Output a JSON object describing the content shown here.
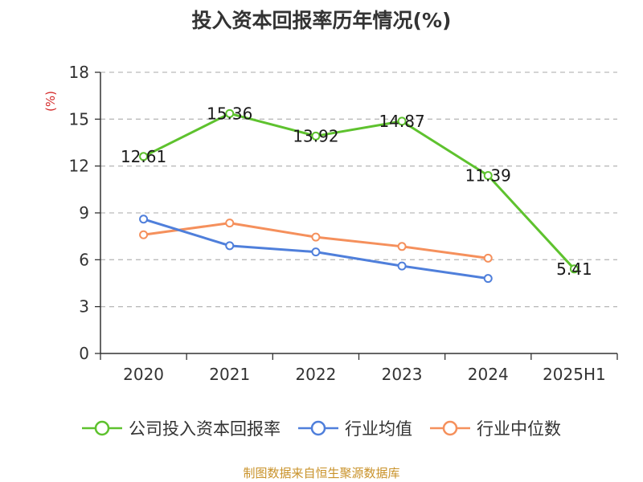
{
  "title": "投入资本回报率历年情况(%)",
  "source_note": "制图数据来自恒生聚源数据库",
  "colors": {
    "company": "#5ec22e",
    "industry_avg": "#4f7fdb",
    "industry_median": "#f5905c",
    "unit": "#d42a2a",
    "source": "#c9922a",
    "axis": "#333333",
    "grid": "#bbbbbb"
  },
  "chart_data": {
    "type": "line",
    "title": "投入资本回报率历年情况(%)",
    "ylabel": "(%)",
    "xlabel": "",
    "categories": [
      "2020",
      "2021",
      "2022",
      "2023",
      "2024",
      "2025H1"
    ],
    "ylim": [
      0,
      18
    ],
    "yticks": [
      0,
      3,
      6,
      9,
      12,
      15,
      18
    ],
    "grid": true,
    "legend_position": "bottom",
    "series": [
      {
        "name": "公司投入资本回报率",
        "color": "#5ec22e",
        "values": [
          12.61,
          15.36,
          13.92,
          14.87,
          11.39,
          5.41
        ],
        "labels": [
          "12.61",
          "15.36",
          "13.92",
          "14.87",
          "11.39",
          "5.41"
        ]
      },
      {
        "name": "行业均值",
        "color": "#4f7fdb",
        "values": [
          8.6,
          6.9,
          6.5,
          5.6,
          4.8,
          null
        ]
      },
      {
        "name": "行业中位数",
        "color": "#f5905c",
        "values": [
          7.6,
          8.35,
          7.45,
          6.85,
          6.1,
          null
        ]
      }
    ]
  }
}
